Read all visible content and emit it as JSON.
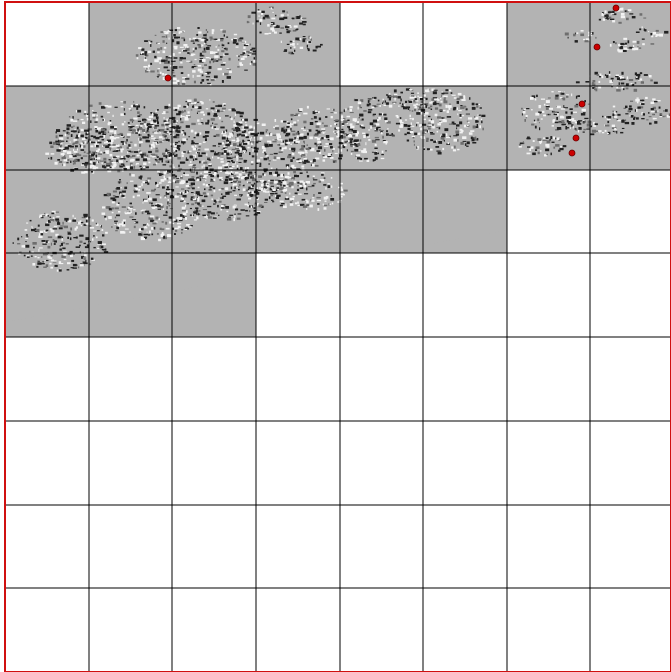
{
  "map": {
    "grid": {
      "columns": 8,
      "rows": 8
    },
    "colors": {
      "background": "#ffffff",
      "coverage_fill": "#b3b3b3",
      "relief_dark": "#222222",
      "relief_mid": "#6e6e6e",
      "relief_light": "#f2f2f2",
      "grid_line": "#000000",
      "frame_border": "#d01010",
      "marker": "#cc0000"
    },
    "loaded_tiles": [
      [
        0,
        1
      ],
      [
        0,
        2
      ],
      [
        0,
        3
      ],
      [
        0,
        6
      ],
      [
        0,
        7
      ],
      [
        1,
        0
      ],
      [
        1,
        1
      ],
      [
        1,
        2
      ],
      [
        1,
        3
      ],
      [
        1,
        4
      ],
      [
        1,
        5
      ],
      [
        1,
        6
      ],
      [
        1,
        7
      ],
      [
        2,
        0
      ],
      [
        2,
        1
      ],
      [
        2,
        2
      ],
      [
        2,
        3
      ],
      [
        2,
        4
      ],
      [
        2,
        5
      ],
      [
        3,
        0
      ],
      [
        3,
        1
      ],
      [
        3,
        2
      ]
    ],
    "markers": [
      {
        "name": "marker-1",
        "label": ""
      },
      {
        "name": "marker-2",
        "label": ""
      },
      {
        "name": "marker-3",
        "label": ""
      },
      {
        "name": "marker-4",
        "label": ""
      },
      {
        "name": "marker-5",
        "label": ""
      },
      {
        "name": "marker-6",
        "label": ""
      }
    ]
  }
}
